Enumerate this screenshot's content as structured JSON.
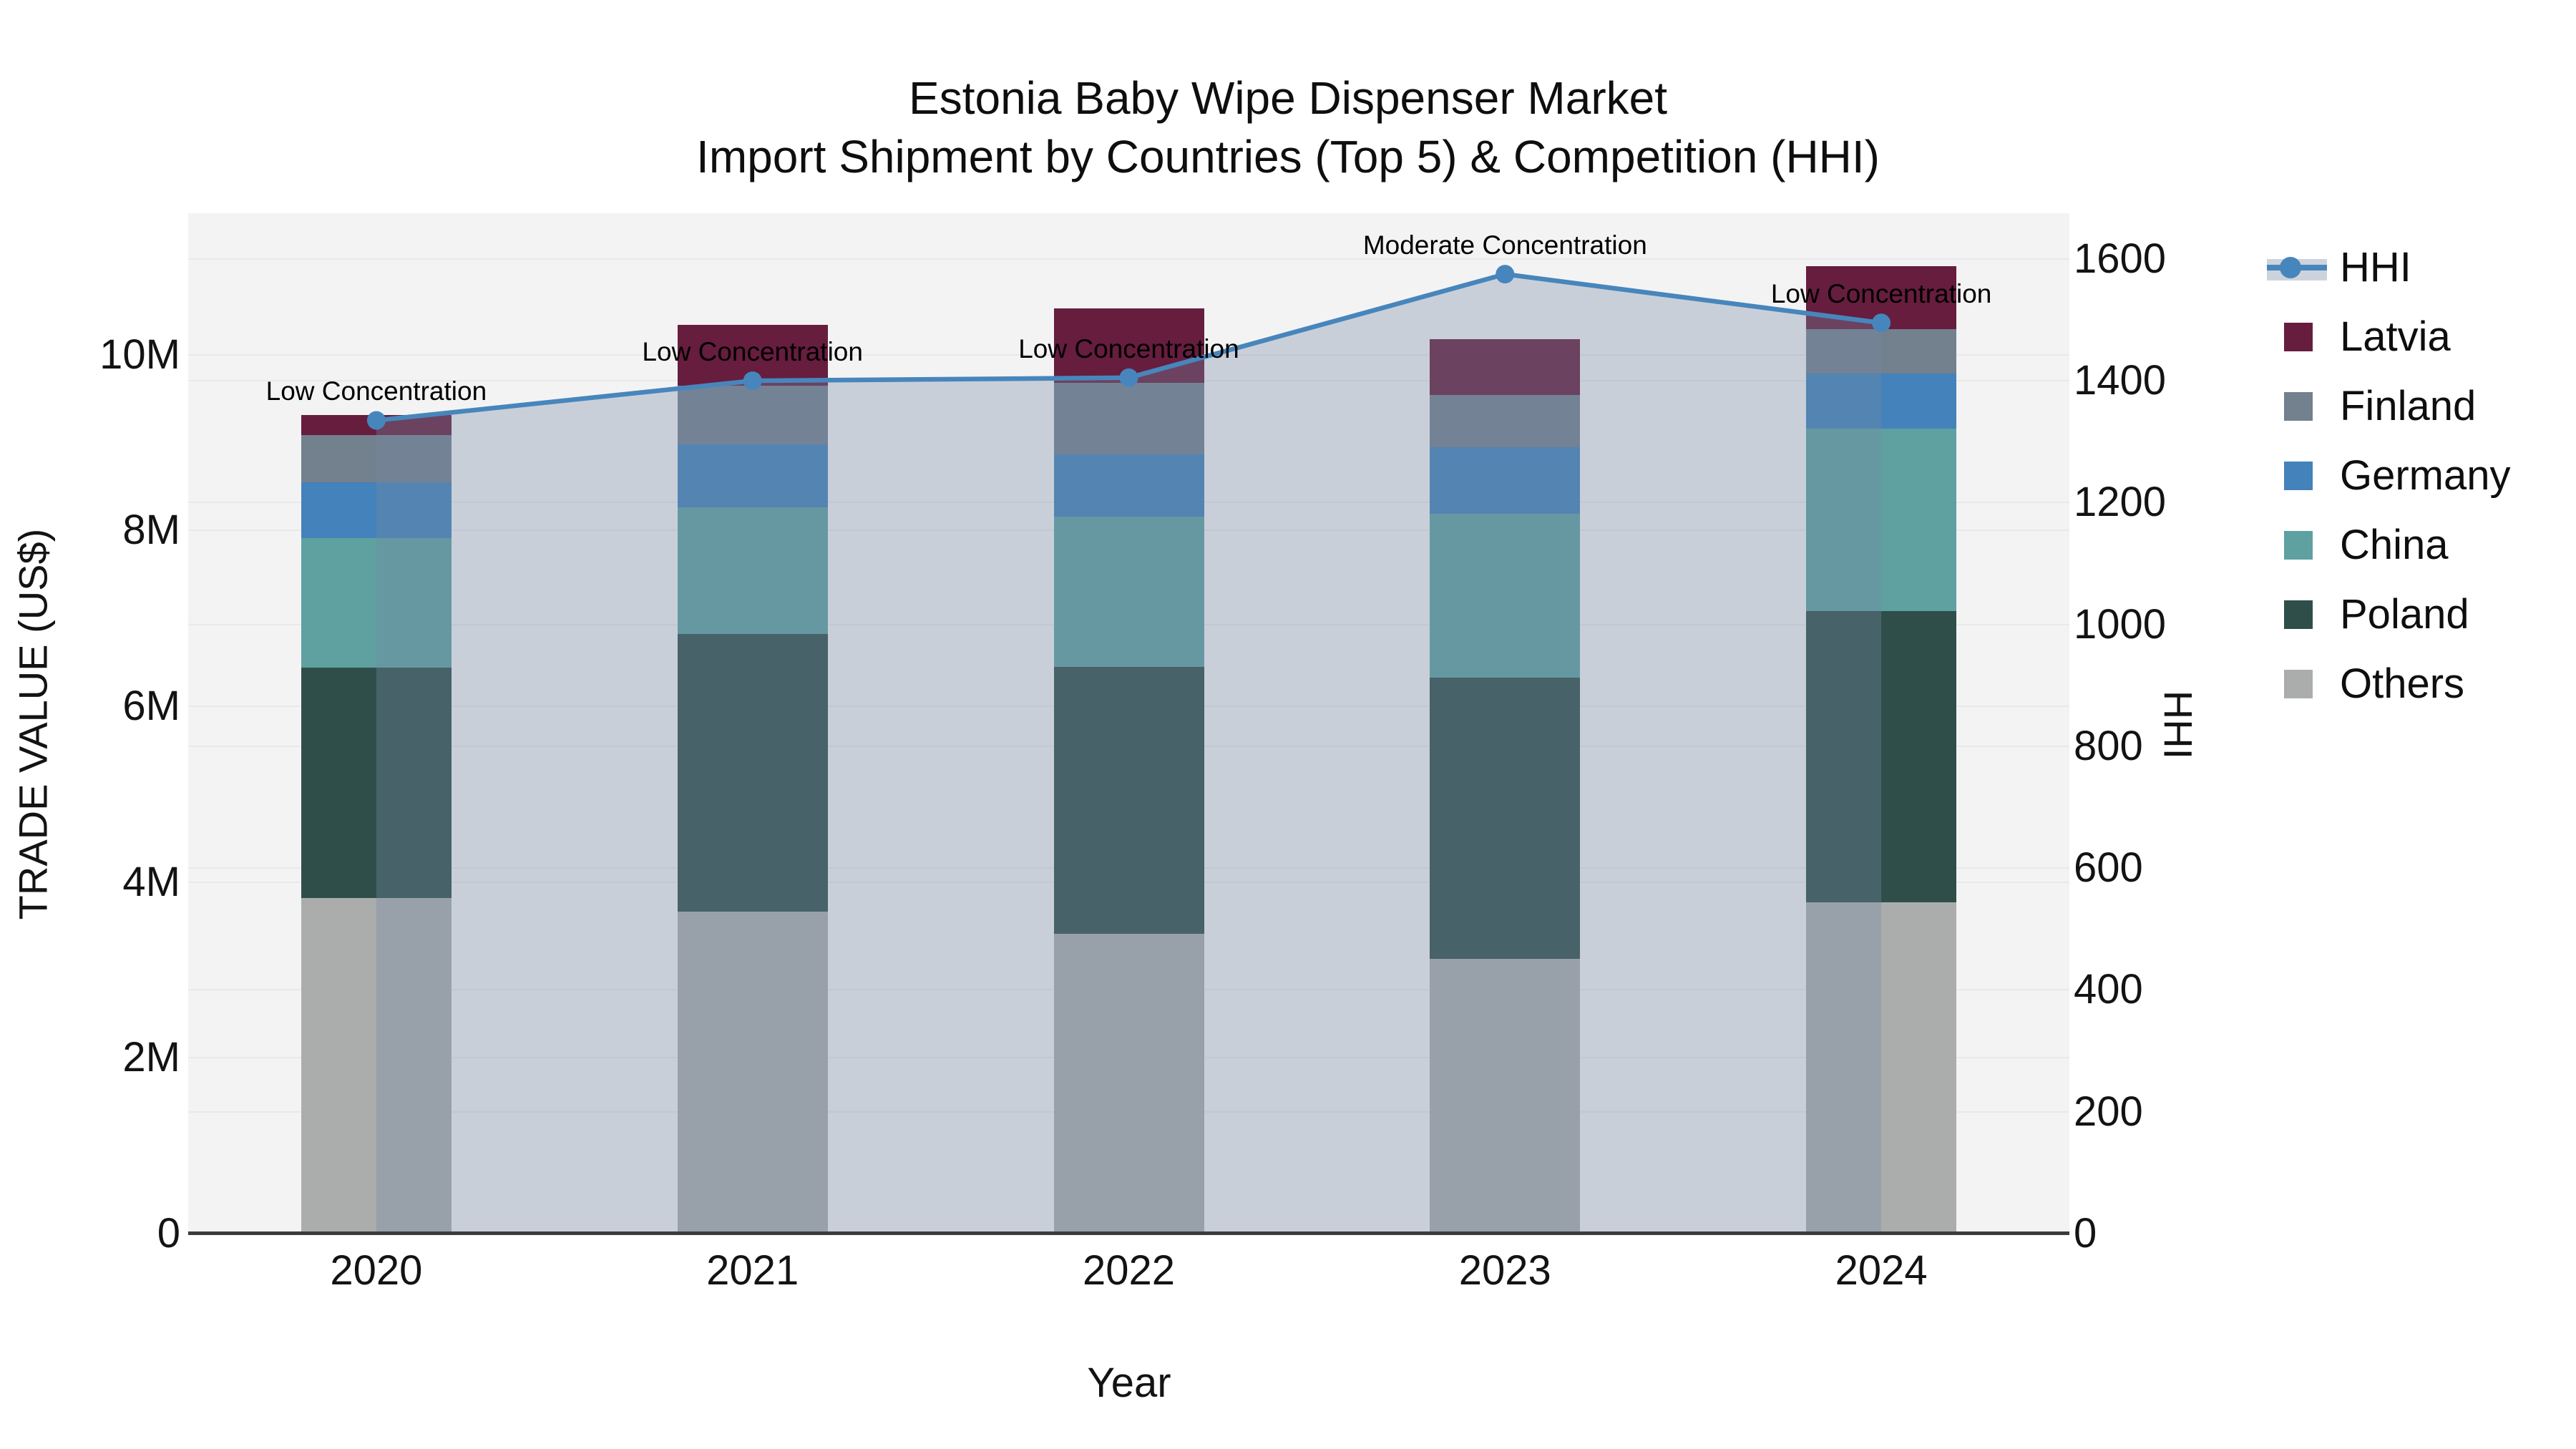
{
  "title": {
    "line1": "Estonia Baby Wipe Dispenser Market",
    "line2": "Import Shipment by Countries (Top 5) & Competition (HHI)"
  },
  "axes": {
    "x_title": "Year",
    "y_title": "TRADE VALUE (US$)",
    "y2_title": "HHI",
    "y_ticks": [
      {
        "value": 0,
        "label": "0"
      },
      {
        "value": 2,
        "label": "2M"
      },
      {
        "value": 4,
        "label": "4M"
      },
      {
        "value": 6,
        "label": "6M"
      },
      {
        "value": 8,
        "label": "8M"
      },
      {
        "value": 10,
        "label": "10M"
      }
    ],
    "y2_ticks": [
      {
        "value": 0,
        "label": "0"
      },
      {
        "value": 200,
        "label": "200"
      },
      {
        "value": 400,
        "label": "400"
      },
      {
        "value": 600,
        "label": "600"
      },
      {
        "value": 800,
        "label": "800"
      },
      {
        "value": 1000,
        "label": "1000"
      },
      {
        "value": 1200,
        "label": "1200"
      },
      {
        "value": 1400,
        "label": "1400"
      },
      {
        "value": 1600,
        "label": "1600"
      }
    ]
  },
  "chart_data": {
    "type": "stacked-bar+line",
    "title": "Estonia Baby Wipe Dispenser Market — Import Shipment by Countries (Top 5) & Competition (HHI)",
    "xlabel": "Year",
    "ylabel": "TRADE VALUE (US$)",
    "y2label": "HHI",
    "categories": [
      "2020",
      "2021",
      "2022",
      "2023",
      "2024"
    ],
    "units": "millions of US$",
    "ylim": [
      0,
      11.61
    ],
    "y2lim": [
      0,
      1675
    ],
    "grid": true,
    "legend_position": "right-outside",
    "series": [
      {
        "name": "Others",
        "color": "#ABADAC",
        "values": [
          3.82,
          3.66,
          3.41,
          3.13,
          3.77
        ]
      },
      {
        "name": "Poland",
        "color": "#2F4E4A",
        "values": [
          2.62,
          3.16,
          3.04,
          3.2,
          3.31
        ]
      },
      {
        "name": "China",
        "color": "#5FA0A1",
        "values": [
          1.47,
          1.44,
          1.71,
          1.86,
          2.08
        ]
      },
      {
        "name": "Germany",
        "color": "#4382BA",
        "values": [
          0.64,
          0.72,
          0.71,
          0.76,
          0.63
        ]
      },
      {
        "name": "Finland",
        "color": "#73808E",
        "values": [
          0.54,
          0.67,
          0.81,
          0.59,
          0.5
        ]
      },
      {
        "name": "Latvia",
        "color": "#661D3E",
        "values": [
          0.22,
          0.69,
          0.85,
          0.64,
          0.72
        ]
      }
    ],
    "bar_totals": [
      9.31,
      10.34,
      10.53,
      10.18,
      11.01
    ],
    "line_series": {
      "name": "HHI",
      "axis": "y2",
      "color": "#4786BC",
      "area_fill": "rgba(117,137,165,0.34)",
      "values": [
        1335,
        1400,
        1405,
        1575,
        1495
      ]
    },
    "annotations": [
      {
        "x": "2020",
        "text": "Low Concentration"
      },
      {
        "x": "2021",
        "text": "Low Concentration"
      },
      {
        "x": "2022",
        "text": "Low Concentration"
      },
      {
        "x": "2023",
        "text": "Moderate Concentration"
      },
      {
        "x": "2024",
        "text": "Low Concentration"
      }
    ]
  },
  "legend": {
    "items": [
      {
        "label": "HHI",
        "type": "line",
        "color": "#4786BC",
        "band": "#CDD3DD"
      },
      {
        "label": "Latvia",
        "type": "swatch",
        "color": "#661D3E"
      },
      {
        "label": "Finland",
        "type": "swatch",
        "color": "#73808E"
      },
      {
        "label": "Germany",
        "type": "swatch",
        "color": "#4382BA"
      },
      {
        "label": "China",
        "type": "swatch",
        "color": "#5FA0A1"
      },
      {
        "label": "Poland",
        "type": "swatch",
        "color": "#2F4E4A"
      },
      {
        "label": "Others",
        "type": "swatch",
        "color": "#ABADAC"
      }
    ]
  },
  "colors": {
    "plot_bg": "#F4F3F4",
    "grid": "#E9E8EA",
    "axis_line": "#3C3C3C",
    "hhi_line": "#4786BC",
    "hhi_fill": "rgba(117,137,165,0.34)"
  }
}
